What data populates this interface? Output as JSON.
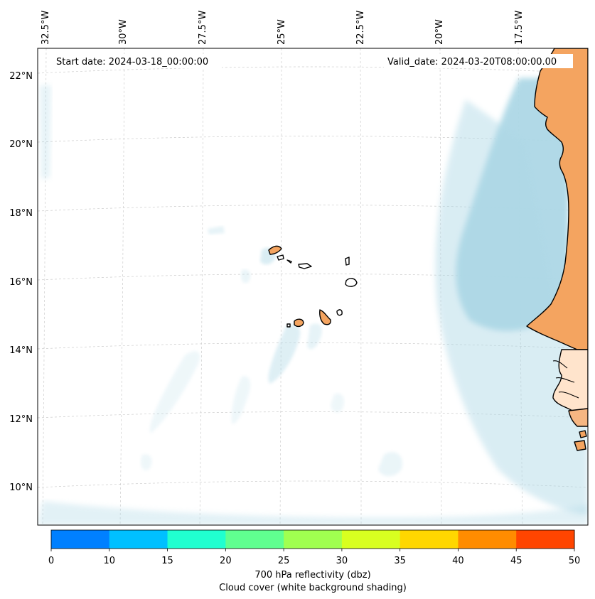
{
  "map": {
    "annotations": {
      "start": "Start date: 2024-03-18_00:00:00",
      "valid": "Valid_date: 2024-03-20T08:00:00.00"
    },
    "lon_labels": [
      "32.5°W",
      "30°W",
      "27.5°W",
      "25°W",
      "22.5°W",
      "20°W",
      "17.5°W"
    ],
    "lat_labels": [
      "22°N",
      "20°N",
      "18°N",
      "16°N",
      "14°N",
      "12°N",
      "10°N"
    ],
    "gridlines": true,
    "colors": {
      "land": "#f4a460",
      "cloud": "#add8e6",
      "coast": "#000000"
    }
  },
  "colorbar": {
    "ticks": [
      "0",
      "10",
      "15",
      "20",
      "25",
      "30",
      "35",
      "40",
      "45",
      "50"
    ],
    "colors": [
      "#0080ff",
      "#00c0ff",
      "#20ffd0",
      "#60ff90",
      "#a0ff50",
      "#d8ff20",
      "#ffd700",
      "#ff8c00",
      "#ff4500"
    ],
    "label1": "700 hPa reflectivity (dbz)",
    "label2": "Cloud cover (white background shading)"
  }
}
